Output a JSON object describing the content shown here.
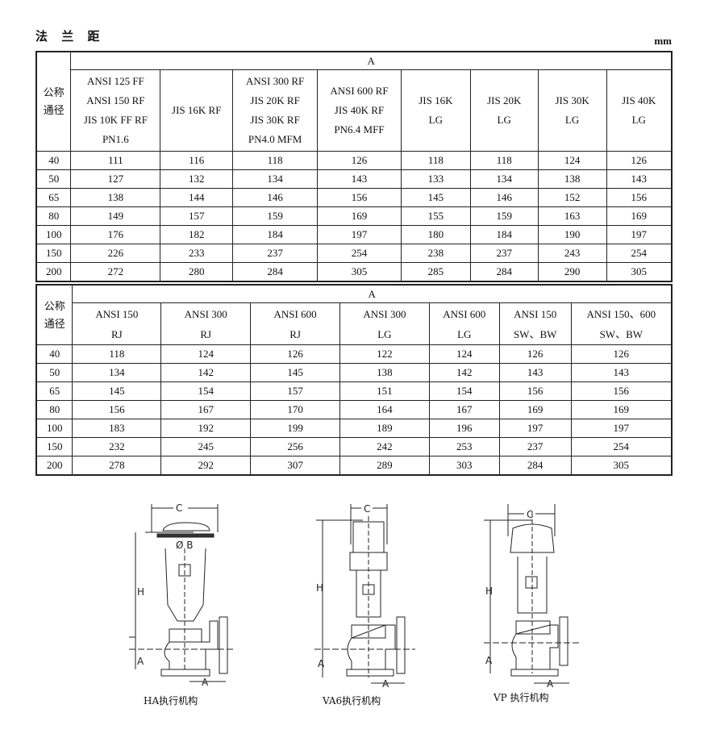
{
  "title": "法 兰 距",
  "unit": "mm",
  "table1": {
    "row_header": "公称\n通径",
    "group_header": "A",
    "columns": [
      "ANSI 125 FF\nANSI 150 RF\nJIS 10K FF RF\nPN1.6",
      "JIS 16K RF",
      "ANSI 300 RF\nJIS 20K RF\nJIS 30K RF\nPN4.0 MFM",
      "ANSI 600 RF\nJIS 40K RF\nPN6.4 MFF",
      "JIS 16K\nLG",
      "JIS 20K\nLG",
      "JIS 30K\nLG",
      "JIS 40K\nLG"
    ],
    "rows": [
      [
        "40",
        "111",
        "116",
        "118",
        "126",
        "118",
        "118",
        "124",
        "126"
      ],
      [
        "50",
        "127",
        "132",
        "134",
        "143",
        "133",
        "134",
        "138",
        "143"
      ],
      [
        "65",
        "138",
        "144",
        "146",
        "156",
        "145",
        "146",
        "152",
        "156"
      ],
      [
        "80",
        "149",
        "157",
        "159",
        "169",
        "155",
        "159",
        "163",
        "169"
      ],
      [
        "100",
        "176",
        "182",
        "184",
        "197",
        "180",
        "184",
        "190",
        "197"
      ],
      [
        "150",
        "226",
        "233",
        "237",
        "254",
        "238",
        "237",
        "243",
        "254"
      ],
      [
        "200",
        "272",
        "280",
        "284",
        "305",
        "285",
        "284",
        "290",
        "305"
      ]
    ]
  },
  "table2": {
    "row_header": "公称\n通径",
    "group_header": "A",
    "columns": [
      "ANSI 150\nRJ",
      "ANSI 300\nRJ",
      "ANSI 600\nRJ",
      "ANSI 300\nLG",
      "ANSI 600\nLG",
      "ANSI 150\nSW、BW",
      "ANSI 150、600\nSW、BW"
    ],
    "rows": [
      [
        "40",
        "118",
        "124",
        "126",
        "122",
        "124",
        "126",
        "126"
      ],
      [
        "50",
        "134",
        "142",
        "145",
        "138",
        "142",
        "143",
        "143"
      ],
      [
        "65",
        "145",
        "154",
        "157",
        "151",
        "154",
        "156",
        "156"
      ],
      [
        "80",
        "156",
        "167",
        "170",
        "164",
        "167",
        "169",
        "169"
      ],
      [
        "100",
        "183",
        "192",
        "199",
        "189",
        "196",
        "197",
        "197"
      ],
      [
        "150",
        "232",
        "245",
        "256",
        "242",
        "253",
        "237",
        "254"
      ],
      [
        "200",
        "278",
        "292",
        "307",
        "289",
        "303",
        "284",
        "305"
      ]
    ]
  },
  "figures": [
    {
      "caption": "HA执行机构",
      "labels": {
        "c": "C",
        "b": "Ø B",
        "h": "H",
        "a1": "A",
        "a2": "A"
      }
    },
    {
      "caption": "VA6执行机构",
      "labels": {
        "c": "C",
        "h": "H",
        "a1": "A",
        "a2": "A"
      }
    },
    {
      "caption": "VP 执行机构",
      "labels": {
        "c": "C",
        "h": "H",
        "a1": "A",
        "a2": "A"
      }
    }
  ]
}
